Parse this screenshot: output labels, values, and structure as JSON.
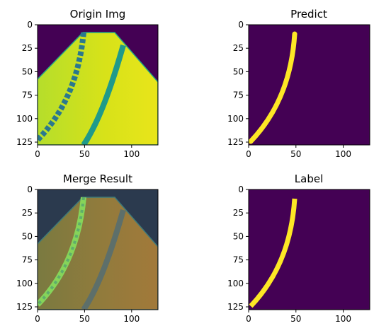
{
  "chart_data": [
    {
      "type": "heatmap",
      "name": "origin",
      "title": "Origin Img",
      "xlim": [
        0,
        128
      ],
      "ylim": [
        128,
        0
      ],
      "xticks": [
        0,
        50,
        100
      ],
      "yticks": [
        0,
        25,
        50,
        75,
        100,
        125
      ],
      "colormap": "viridis",
      "content": "bright road region with a dark dashed lane line and a dark solid lane line"
    },
    {
      "type": "heatmap",
      "name": "predict",
      "title": "Predict",
      "xlim": [
        0,
        128
      ],
      "ylim": [
        128,
        0
      ],
      "xticks": [
        0,
        50,
        100
      ],
      "yticks": [
        0,
        25,
        50,
        75,
        100,
        125
      ],
      "colormap": "viridis",
      "content": "binary lane mask curving from (48,10) to (2,125)"
    },
    {
      "type": "heatmap",
      "name": "merge",
      "title": "Merge Result",
      "xlim": [
        0,
        128
      ],
      "ylim": [
        128,
        0
      ],
      "xticks": [
        0,
        50,
        100
      ],
      "yticks": [
        0,
        25,
        50,
        75,
        100,
        125
      ],
      "colormap": "blend",
      "content": "origin image blended with predicted lane overlay"
    },
    {
      "type": "heatmap",
      "name": "label",
      "title": "Label",
      "xlim": [
        0,
        128
      ],
      "ylim": [
        128,
        0
      ],
      "xticks": [
        0,
        50,
        100
      ],
      "yticks": [
        0,
        25,
        50,
        75,
        100,
        125
      ],
      "colormap": "viridis",
      "content": "ground-truth binary lane mask curving from (48,10) to (2,125)"
    }
  ],
  "colors": {
    "background": "#440154",
    "mask": "#fde725",
    "road_light": "#d4e21a",
    "road_mid": "#b5de2b",
    "road_edge": "#9fd935",
    "lane_dark": "#1f9a8a",
    "lane_dashed": "#2a788e",
    "merge_bg": "#2c3e50",
    "merge_road": "#8a7a3a",
    "merge_lane": "#5a6a5a",
    "merge_pred": "#7fd34e"
  }
}
